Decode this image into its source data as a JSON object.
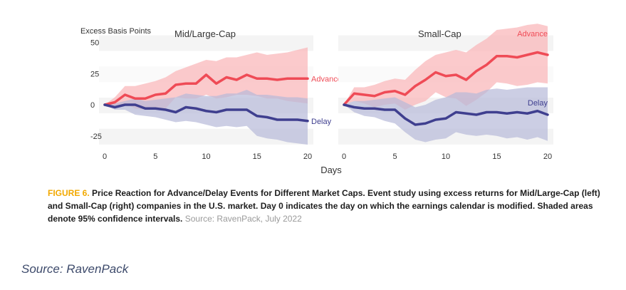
{
  "chart_data": {
    "type": "line",
    "ylabel": "Excess Basis Points",
    "xlabel": "Days",
    "panels": [
      {
        "title": "Mid/Large-Cap",
        "xlim": [
          0,
          20
        ],
        "ylim": [
          -30,
          50
        ],
        "x_ticks": [
          0,
          5,
          10,
          15,
          20
        ],
        "y_ticks": [
          50,
          25,
          0,
          -25
        ],
        "series": [
          {
            "name": "Advance",
            "color": "#ef4b56",
            "x": [
              0,
              1,
              2,
              3,
              4,
              5,
              6,
              7,
              8,
              9,
              10,
              11,
              12,
              13,
              14,
              15,
              16,
              17,
              18,
              19,
              20
            ],
            "values": [
              0,
              2,
              8,
              5,
              5,
              8,
              9,
              16,
              17,
              17,
              24,
              17,
              22,
              20,
              24,
              21,
              21,
              20,
              21,
              21,
              21
            ],
            "ci_upper": [
              0,
              6,
              15,
              15,
              17,
              19,
              22,
              27,
              30,
              33,
              36,
              35,
              38,
              38,
              40,
              42,
              40,
              41,
              42,
              44,
              46
            ],
            "ci_lower": [
              0,
              -2,
              1,
              -3,
              -4,
              -4,
              -3,
              6,
              5,
              5,
              8,
              5,
              6,
              8,
              8,
              7,
              5,
              5,
              3,
              2,
              1
            ]
          },
          {
            "name": "Delay",
            "color": "#3f3f8f",
            "x": [
              0,
              1,
              2,
              3,
              4,
              5,
              6,
              7,
              8,
              9,
              10,
              11,
              12,
              13,
              14,
              15,
              16,
              17,
              18,
              19,
              20
            ],
            "values": [
              0,
              -2,
              0,
              0,
              -3,
              -3,
              -4,
              -6,
              -2,
              -3,
              -5,
              -6,
              -4,
              -4,
              -4,
              -9,
              -10,
              -12,
              -12,
              -12,
              -13
            ],
            "ci_upper": [
              0,
              1,
              3,
              5,
              3,
              4,
              5,
              6,
              9,
              8,
              7,
              7,
              9,
              9,
              12,
              8,
              8,
              7,
              6,
              6,
              5
            ],
            "ci_lower": [
              0,
              -4,
              -4,
              -8,
              -9,
              -10,
              -12,
              -14,
              -13,
              -14,
              -16,
              -18,
              -17,
              -18,
              -17,
              -25,
              -27,
              -28,
              -30,
              -31,
              -32
            ]
          }
        ]
      },
      {
        "title": "Small-Cap",
        "xlim": [
          0,
          20
        ],
        "ylim": [
          -30,
          50
        ],
        "x_ticks": [
          0,
          5,
          10,
          15,
          20
        ],
        "y_ticks": [
          50,
          25,
          0,
          -25
        ],
        "series": [
          {
            "name": "Advance",
            "color": "#ef4b56",
            "x": [
              0,
              1,
              2,
              3,
              4,
              5,
              6,
              7,
              8,
              9,
              10,
              11,
              12,
              13,
              14,
              15,
              16,
              17,
              18,
              19,
              20
            ],
            "values": [
              0,
              9,
              8,
              7,
              10,
              11,
              8,
              15,
              20,
              26,
              23,
              24,
              20,
              27,
              32,
              39,
              39,
              38,
              40,
              42,
              40
            ],
            "ci_upper": [
              0,
              14,
              14,
              16,
              19,
              21,
              20,
              28,
              35,
              40,
              42,
              44,
              42,
              48,
              53,
              60,
              61,
              62,
              64,
              65,
              63
            ],
            "ci_lower": [
              0,
              3,
              1,
              -2,
              0,
              1,
              -4,
              0,
              3,
              10,
              6,
              5,
              -1,
              4,
              10,
              18,
              17,
              15,
              16,
              18,
              17
            ]
          },
          {
            "name": "Delay",
            "color": "#3f3f8f",
            "x": [
              0,
              1,
              2,
              3,
              4,
              5,
              6,
              7,
              8,
              9,
              10,
              11,
              12,
              13,
              14,
              15,
              16,
              17,
              18,
              19,
              20
            ],
            "values": [
              0,
              -2,
              -3,
              -3,
              -4,
              -4,
              -11,
              -16,
              -15,
              -12,
              -11,
              -6,
              -7,
              -8,
              -6,
              -6,
              -7,
              -6,
              -7,
              -5,
              -8
            ],
            "ci_upper": [
              0,
              3,
              3,
              4,
              5,
              6,
              2,
              -2,
              0,
              4,
              6,
              10,
              10,
              9,
              12,
              13,
              12,
              13,
              14,
              14,
              14
            ],
            "ci_lower": [
              0,
              -6,
              -9,
              -10,
              -13,
              -15,
              -22,
              -28,
              -30,
              -28,
              -27,
              -22,
              -24,
              -25,
              -24,
              -25,
              -27,
              -26,
              -28,
              -26,
              -29
            ]
          }
        ]
      }
    ]
  },
  "caption": {
    "figure_label": "FIGURE 6.",
    "text": " Price Reaction for Advance/Delay Events for Different Market Caps. Event study using excess returns for Mid/Large-Cap (left) and Small-Cap (right) companies in the U.S. market. Day 0 indicates the day on which the earnings calendar is modified. Shaded areas denote 95% confidence intervals.",
    "source": " Source: RavenPack, July 2022"
  },
  "footer": {
    "source_note": "Source: RavenPack"
  },
  "colors": {
    "advance": "#ef4b56",
    "advance_band": "#f9b4b7",
    "delay": "#3f3f8f",
    "delay_band": "#b7b9d8",
    "grid_band": "#f4f4f4",
    "caption_accent": "#f2a900"
  }
}
